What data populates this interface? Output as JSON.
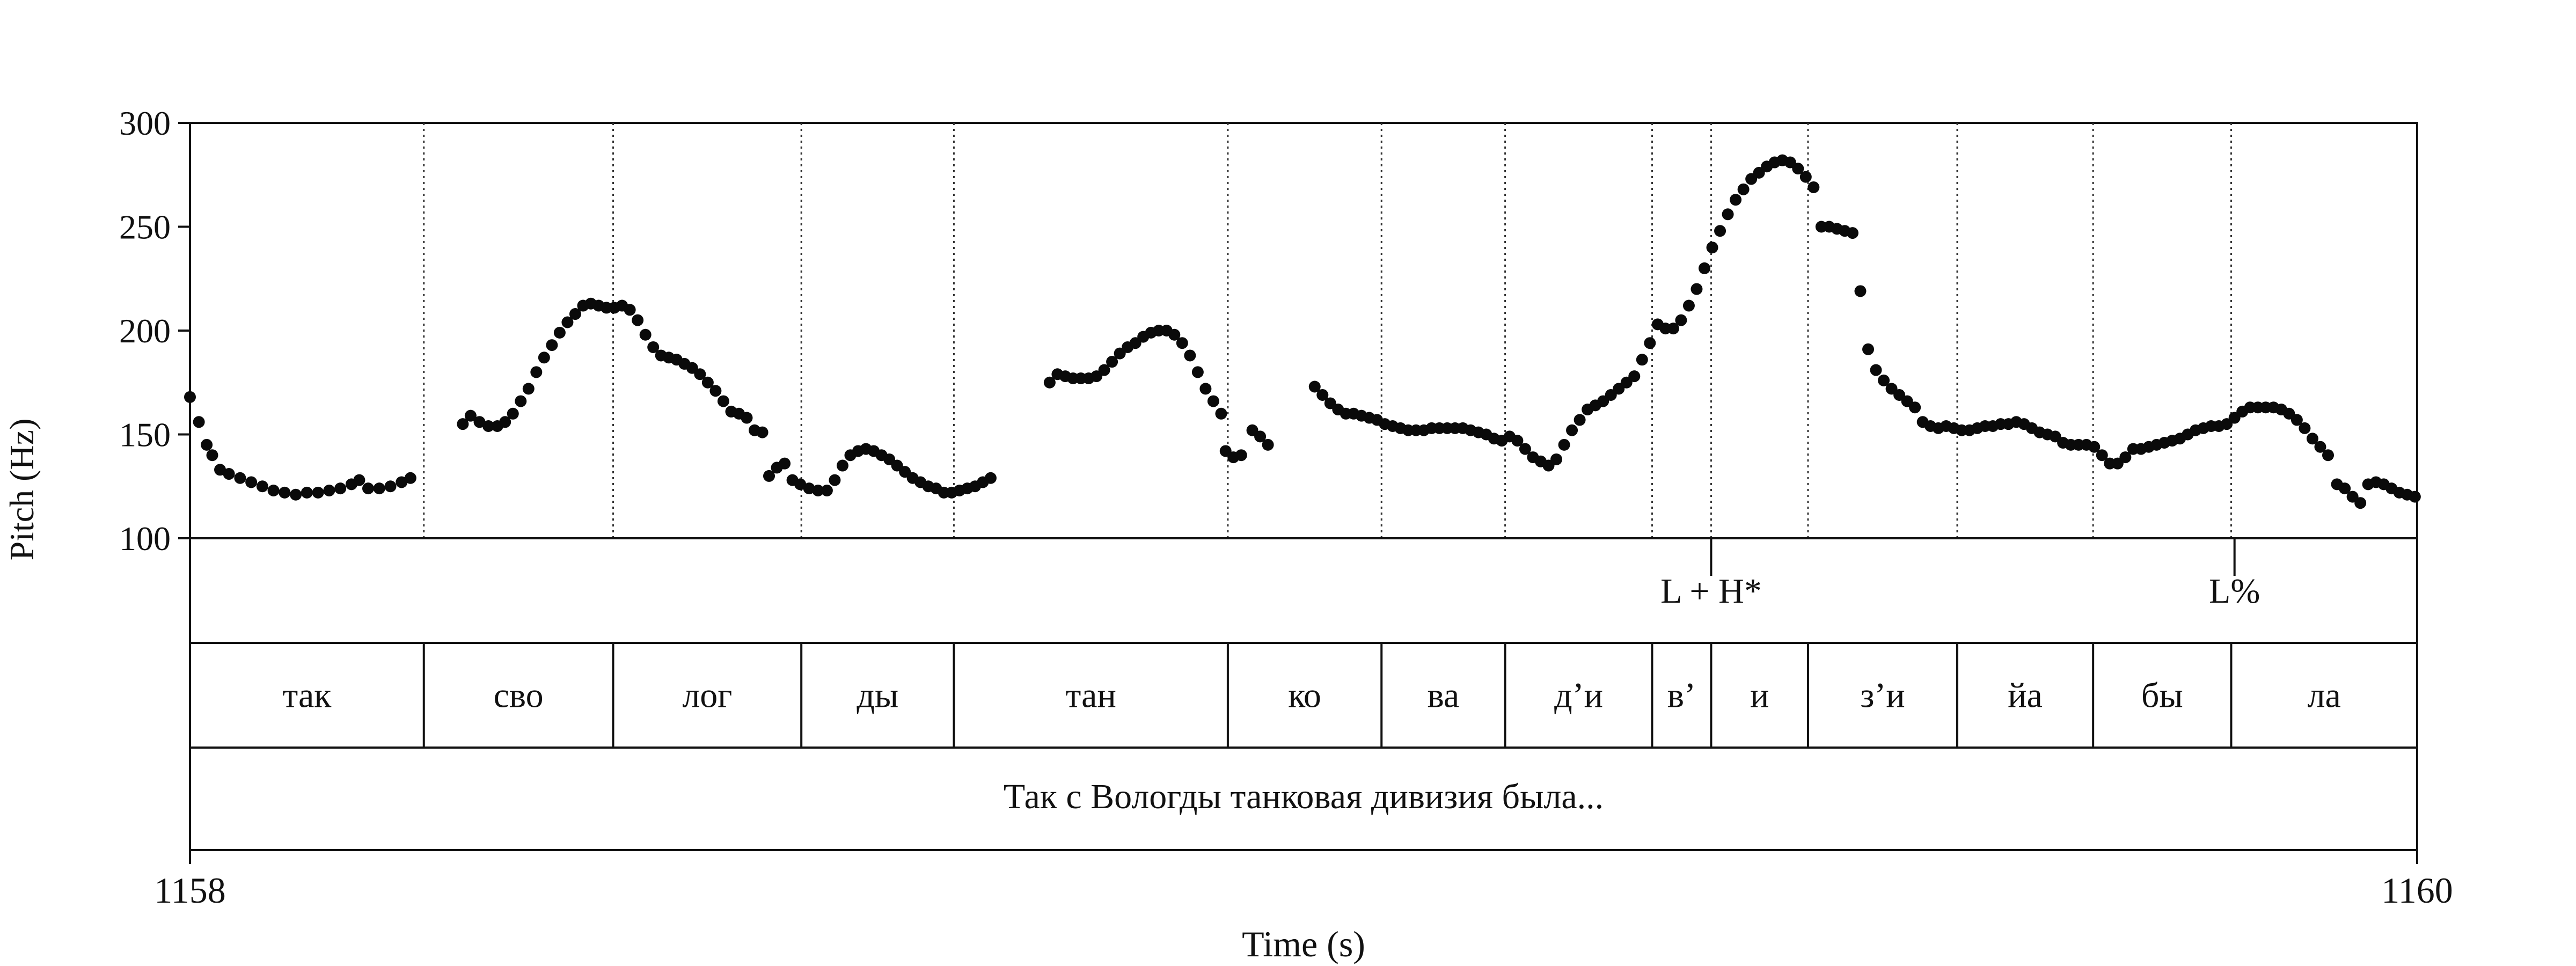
{
  "chart_data": {
    "type": "scatter",
    "ylabel": "Pitch (Hz)",
    "xlabel": "Time (s)",
    "ylim": [
      100,
      300
    ],
    "xlim": [
      1158,
      1160
    ],
    "yticks": [
      "100",
      "150",
      "200",
      "250",
      "300"
    ],
    "xticks": [
      "1158",
      "1160"
    ],
    "grid": false,
    "tones": [
      {
        "label": "L + H*",
        "t": 1159.366
      },
      {
        "label": "L%",
        "t": 1159.836
      }
    ],
    "syllables": [
      {
        "label": "так",
        "start": 1158.0,
        "end": 1158.21
      },
      {
        "label": "сво",
        "start": 1158.21,
        "end": 1158.38
      },
      {
        "label": "лог",
        "start": 1158.38,
        "end": 1158.549
      },
      {
        "label": "ды",
        "start": 1158.549,
        "end": 1158.686
      },
      {
        "label": "тан",
        "start": 1158.686,
        "end": 1158.932
      },
      {
        "label": "ко",
        "start": 1158.932,
        "end": 1159.07
      },
      {
        "label": "ва",
        "start": 1159.07,
        "end": 1159.181
      },
      {
        "label": "д’и",
        "start": 1159.181,
        "end": 1159.313
      },
      {
        "label": "в’",
        "start": 1159.313,
        "end": 1159.366
      },
      {
        "label": "и",
        "start": 1159.366,
        "end": 1159.453
      },
      {
        "label": "з’и",
        "start": 1159.453,
        "end": 1159.587
      },
      {
        "label": "йа",
        "start": 1159.587,
        "end": 1159.709
      },
      {
        "label": "бы",
        "start": 1159.709,
        "end": 1159.833
      },
      {
        "label": "ла",
        "start": 1159.833,
        "end": 1160.0
      }
    ],
    "sentence": "Так с Вологды танковая дивизия была...",
    "pitch_segments": [
      [
        [
          1158.0,
          168
        ],
        [
          1158.008,
          156
        ],
        [
          1158.015,
          145
        ],
        [
          1158.02,
          140
        ],
        [
          1158.027,
          133
        ],
        [
          1158.035,
          131
        ],
        [
          1158.045,
          129
        ],
        [
          1158.055,
          127
        ],
        [
          1158.065,
          125
        ],
        [
          1158.075,
          123
        ],
        [
          1158.085,
          122
        ],
        [
          1158.095,
          121
        ],
        [
          1158.105,
          122
        ],
        [
          1158.115,
          122
        ],
        [
          1158.125,
          123
        ],
        [
          1158.135,
          124
        ],
        [
          1158.145,
          126
        ],
        [
          1158.152,
          128
        ],
        [
          1158.16,
          124
        ],
        [
          1158.17,
          124
        ],
        [
          1158.18,
          125
        ],
        [
          1158.19,
          127
        ],
        [
          1158.198,
          129
        ]
      ],
      [
        [
          1158.245,
          155
        ],
        [
          1158.252,
          159
        ],
        [
          1158.26,
          156
        ],
        [
          1158.268,
          154
        ],
        [
          1158.276,
          154
        ],
        [
          1158.283,
          156
        ],
        [
          1158.29,
          160
        ],
        [
          1158.297,
          166
        ],
        [
          1158.304,
          172
        ],
        [
          1158.311,
          180
        ],
        [
          1158.318,
          187
        ],
        [
          1158.325,
          193
        ],
        [
          1158.332,
          199
        ],
        [
          1158.339,
          204
        ],
        [
          1158.346,
          208
        ],
        [
          1158.353,
          212
        ],
        [
          1158.36,
          213
        ],
        [
          1158.367,
          212
        ],
        [
          1158.374,
          211
        ],
        [
          1158.381,
          211
        ],
        [
          1158.388,
          212
        ],
        [
          1158.395,
          210
        ],
        [
          1158.402,
          205
        ],
        [
          1158.409,
          198
        ],
        [
          1158.416,
          192
        ],
        [
          1158.423,
          188
        ],
        [
          1158.43,
          187
        ],
        [
          1158.437,
          186
        ],
        [
          1158.444,
          184
        ],
        [
          1158.451,
          182
        ],
        [
          1158.458,
          179
        ],
        [
          1158.465,
          175
        ],
        [
          1158.472,
          171
        ],
        [
          1158.479,
          166
        ],
        [
          1158.486,
          161
        ],
        [
          1158.493,
          160
        ],
        [
          1158.5,
          158
        ],
        [
          1158.507,
          152
        ],
        [
          1158.514,
          151
        ]
      ],
      [
        [
          1158.52,
          130
        ],
        [
          1158.527,
          134
        ],
        [
          1158.534,
          136
        ],
        [
          1158.541,
          128
        ],
        [
          1158.548,
          126
        ],
        [
          1158.556,
          124
        ],
        [
          1158.564,
          123
        ],
        [
          1158.572,
          123
        ],
        [
          1158.579,
          128
        ],
        [
          1158.586,
          135
        ],
        [
          1158.593,
          140
        ],
        [
          1158.6,
          142
        ],
        [
          1158.607,
          143
        ],
        [
          1158.614,
          142
        ],
        [
          1158.621,
          140
        ],
        [
          1158.628,
          138
        ],
        [
          1158.635,
          135
        ],
        [
          1158.642,
          132
        ],
        [
          1158.649,
          129
        ],
        [
          1158.656,
          127
        ],
        [
          1158.663,
          125
        ],
        [
          1158.67,
          124
        ],
        [
          1158.677,
          122
        ],
        [
          1158.684,
          122
        ],
        [
          1158.691,
          123
        ],
        [
          1158.698,
          124
        ],
        [
          1158.705,
          125
        ],
        [
          1158.712,
          127
        ],
        [
          1158.719,
          129
        ]
      ],
      [
        [
          1158.772,
          175
        ],
        [
          1158.779,
          179
        ],
        [
          1158.786,
          178
        ],
        [
          1158.793,
          177
        ],
        [
          1158.8,
          177
        ],
        [
          1158.807,
          177
        ],
        [
          1158.814,
          178
        ],
        [
          1158.821,
          181
        ],
        [
          1158.828,
          185
        ],
        [
          1158.835,
          189
        ],
        [
          1158.842,
          192
        ],
        [
          1158.849,
          194
        ],
        [
          1158.856,
          197
        ],
        [
          1158.863,
          199
        ],
        [
          1158.87,
          200
        ],
        [
          1158.877,
          200
        ],
        [
          1158.884,
          198
        ],
        [
          1158.891,
          194
        ],
        [
          1158.898,
          188
        ],
        [
          1158.905,
          180
        ],
        [
          1158.912,
          172
        ],
        [
          1158.919,
          166
        ],
        [
          1158.926,
          160
        ]
      ],
      [
        [
          1158.93,
          142
        ],
        [
          1158.937,
          139
        ],
        [
          1158.944,
          140
        ],
        [
          1158.954,
          152
        ],
        [
          1158.961,
          149
        ],
        [
          1158.968,
          145
        ]
      ],
      [
        [
          1159.01,
          173
        ],
        [
          1159.017,
          169
        ],
        [
          1159.024,
          165
        ],
        [
          1159.031,
          162
        ],
        [
          1159.038,
          160
        ],
        [
          1159.045,
          160
        ],
        [
          1159.052,
          159
        ],
        [
          1159.059,
          158
        ],
        [
          1159.066,
          157
        ],
        [
          1159.073,
          155
        ],
        [
          1159.08,
          154
        ],
        [
          1159.087,
          153
        ],
        [
          1159.094,
          152
        ],
        [
          1159.101,
          152
        ],
        [
          1159.108,
          152
        ],
        [
          1159.115,
          153
        ],
        [
          1159.122,
          153
        ],
        [
          1159.129,
          153
        ],
        [
          1159.136,
          153
        ],
        [
          1159.143,
          153
        ],
        [
          1159.15,
          152
        ],
        [
          1159.157,
          151
        ],
        [
          1159.164,
          150
        ],
        [
          1159.171,
          148
        ],
        [
          1159.178,
          147
        ],
        [
          1159.185,
          149
        ],
        [
          1159.192,
          147
        ],
        [
          1159.199,
          143
        ],
        [
          1159.206,
          139
        ],
        [
          1159.213,
          137
        ],
        [
          1159.22,
          135
        ],
        [
          1159.227,
          138
        ],
        [
          1159.234,
          145
        ],
        [
          1159.241,
          152
        ],
        [
          1159.248,
          157
        ],
        [
          1159.255,
          162
        ],
        [
          1159.262,
          164
        ],
        [
          1159.269,
          166
        ],
        [
          1159.276,
          169
        ],
        [
          1159.283,
          172
        ],
        [
          1159.29,
          175
        ],
        [
          1159.297,
          178
        ],
        [
          1159.304,
          186
        ],
        [
          1159.311,
          194
        ],
        [
          1159.318,
          203
        ],
        [
          1159.325,
          201
        ],
        [
          1159.332,
          201
        ],
        [
          1159.339,
          205
        ],
        [
          1159.346,
          212
        ],
        [
          1159.353,
          220
        ],
        [
          1159.36,
          230
        ],
        [
          1159.367,
          240
        ],
        [
          1159.374,
          248
        ],
        [
          1159.381,
          256
        ],
        [
          1159.388,
          263
        ],
        [
          1159.395,
          268
        ],
        [
          1159.402,
          273
        ],
        [
          1159.409,
          276
        ],
        [
          1159.416,
          279
        ],
        [
          1159.423,
          281
        ],
        [
          1159.43,
          282
        ],
        [
          1159.437,
          281
        ],
        [
          1159.444,
          278
        ],
        [
          1159.451,
          274
        ],
        [
          1159.458,
          269
        ],
        [
          1159.465,
          250
        ],
        [
          1159.472,
          250
        ],
        [
          1159.479,
          249
        ],
        [
          1159.486,
          248
        ],
        [
          1159.493,
          247
        ],
        [
          1159.5,
          219
        ],
        [
          1159.507,
          191
        ],
        [
          1159.514,
          181
        ],
        [
          1159.521,
          176
        ],
        [
          1159.528,
          172
        ],
        [
          1159.535,
          169
        ],
        [
          1159.542,
          166
        ],
        [
          1159.549,
          163
        ],
        [
          1159.556,
          156
        ],
        [
          1159.563,
          154
        ],
        [
          1159.57,
          153
        ],
        [
          1159.577,
          154
        ],
        [
          1159.584,
          153
        ],
        [
          1159.591,
          152
        ],
        [
          1159.598,
          152
        ],
        [
          1159.605,
          153
        ],
        [
          1159.612,
          154
        ],
        [
          1159.619,
          154
        ],
        [
          1159.626,
          155
        ],
        [
          1159.633,
          155
        ],
        [
          1159.64,
          156
        ],
        [
          1159.647,
          155
        ],
        [
          1159.654,
          153
        ],
        [
          1159.661,
          151
        ],
        [
          1159.668,
          150
        ],
        [
          1159.675,
          149
        ],
        [
          1159.682,
          146
        ],
        [
          1159.689,
          145
        ],
        [
          1159.696,
          145
        ],
        [
          1159.703,
          145
        ],
        [
          1159.71,
          144
        ],
        [
          1159.717,
          140
        ],
        [
          1159.724,
          136
        ],
        [
          1159.731,
          136
        ],
        [
          1159.738,
          139
        ],
        [
          1159.745,
          143
        ],
        [
          1159.752,
          143
        ],
        [
          1159.759,
          144
        ],
        [
          1159.766,
          145
        ],
        [
          1159.773,
          146
        ],
        [
          1159.78,
          147
        ],
        [
          1159.787,
          148
        ],
        [
          1159.794,
          150
        ],
        [
          1159.801,
          152
        ],
        [
          1159.808,
          153
        ],
        [
          1159.815,
          154
        ],
        [
          1159.822,
          154
        ],
        [
          1159.829,
          155
        ],
        [
          1159.836,
          158
        ],
        [
          1159.843,
          161
        ],
        [
          1159.85,
          163
        ],
        [
          1159.857,
          163
        ],
        [
          1159.864,
          163
        ],
        [
          1159.871,
          163
        ],
        [
          1159.878,
          162
        ],
        [
          1159.885,
          160
        ],
        [
          1159.892,
          157
        ],
        [
          1159.899,
          153
        ],
        [
          1159.906,
          148
        ],
        [
          1159.913,
          144
        ],
        [
          1159.92,
          140
        ]
      ],
      [
        [
          1159.928,
          126
        ],
        [
          1159.935,
          124
        ],
        [
          1159.942,
          120
        ],
        [
          1159.949,
          117
        ],
        [
          1159.956,
          126
        ],
        [
          1159.963,
          127
        ],
        [
          1159.97,
          126
        ],
        [
          1159.977,
          124
        ],
        [
          1159.984,
          122
        ],
        [
          1159.991,
          121
        ],
        [
          1159.998,
          120
        ]
      ]
    ]
  }
}
